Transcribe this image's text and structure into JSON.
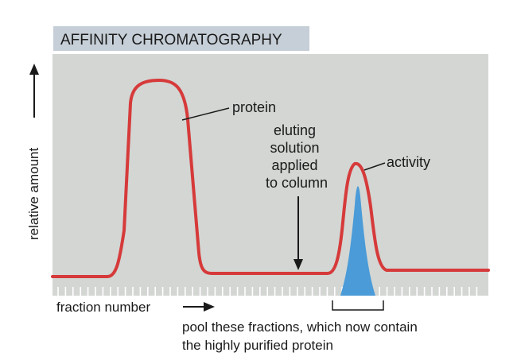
{
  "title": "AFFINITY CHROMATOGRAPHY",
  "labels": {
    "protein": "protein",
    "eluting": [
      "eluting",
      "solution",
      "applied",
      "to column"
    ],
    "activity": "activity",
    "y_axis": "relative amount",
    "x_axis": "fraction number",
    "pool": [
      "pool these fractions, which now contain",
      "the highly purified protein"
    ]
  },
  "colors": {
    "panel": "#d3d6d3",
    "title_bg": "#c6cfd7",
    "protein_curve": "#d63a3a",
    "activity_fill": "#4a9bd8",
    "ink": "#1a1a1a"
  }
}
